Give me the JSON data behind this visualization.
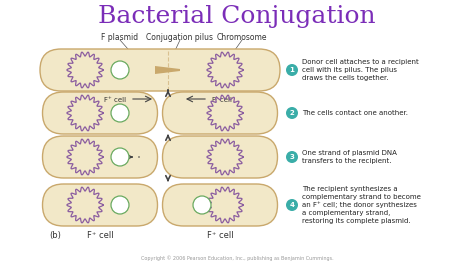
{
  "title": "Bacterial Conjugation",
  "title_color": "#7B2DB8",
  "title_fontsize": 18,
  "bg_color": "#FFFFFF",
  "cell_fill": "#F2E8C8",
  "cell_edge": "#C9A86C",
  "chromosome_color": "#8B5DA0",
  "plasmid_fill": "#FFFFFF",
  "plasmid_edge": "#6AAA60",
  "arrow_color": "#444444",
  "step_num_bg": "#3AADA8",
  "copyright": "Copyright © 2006 Pearson Education, Inc., publishing as Benjamin Cummings.",
  "header_labels": [
    "F plasmid",
    "Conjugation pilus",
    "Chromosome"
  ],
  "steps": [
    "Donor cell attaches to a recipient\ncell with its pilus. The pilus\ndraws the cells together.",
    "The cells contact one another.",
    "One strand of plasmid DNA\ntransfers to the recipient.",
    "The recipient synthesizes a\ncomplementary strand to become\nan F⁺ cell; the donor synthesizes\na complementary strand,\nrestoring its complete plasmid."
  ]
}
